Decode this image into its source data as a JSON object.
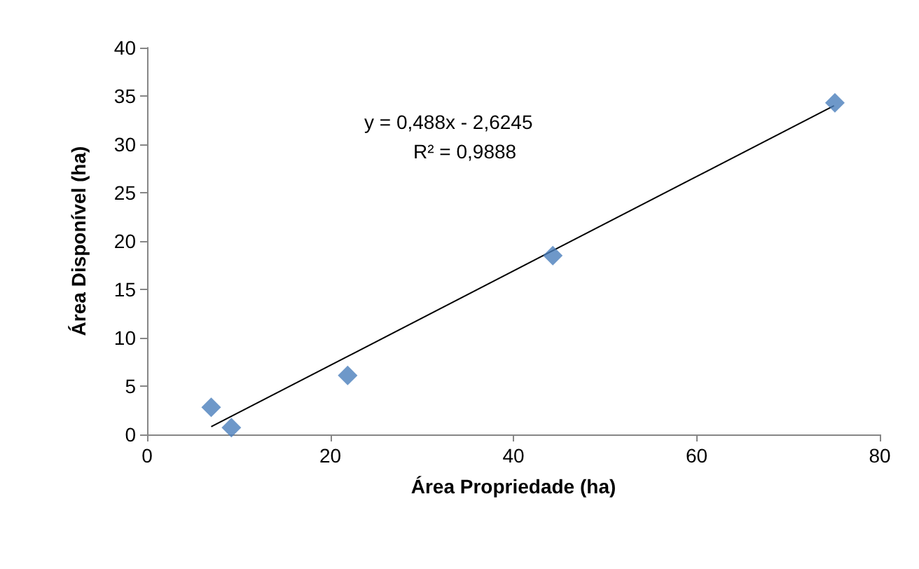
{
  "chart_data": {
    "type": "scatter",
    "xlabel": "Área Propriedade (ha)",
    "ylabel": "Área Disponível (ha)",
    "annotations": [
      "y = 0,488x - 2,6245",
      "R² = 0,9888"
    ],
    "series": [
      {
        "color": "#4a7ebb",
        "marker": "diamond",
        "x": [
          7.0,
          9.2,
          21.9,
          44.3,
          75.1
        ],
        "values": [
          2.8,
          0.7,
          6.1,
          18.5,
          34.3
        ]
      },
      {
        "type": "line",
        "color": "#000000",
        "marker": "none",
        "line_style": "solid",
        "x": [
          7,
          75
        ],
        "values": [
          0.8,
          34.0
        ]
      }
    ],
    "xlim": [
      0,
      80
    ],
    "xticks": [
      0,
      20,
      40,
      60,
      80
    ],
    "ylim": [
      0,
      40
    ],
    "yticks": [
      0,
      5,
      10,
      15,
      20,
      25,
      30,
      35,
      40
    ],
    "grid": false
  }
}
